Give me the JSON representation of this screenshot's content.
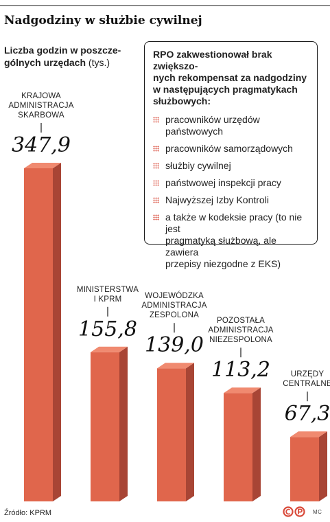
{
  "title": "Nadgodziny w służbie cywilnej",
  "subtitle": {
    "line1": "Liczba godzin w poszcze-",
    "line2": "gólnych urzędach",
    "unit": "(tys.)"
  },
  "box": {
    "heading_lines": [
      "RPO zakwestionował brak zwiększo-",
      "nych rekompensat za nadgodziny",
      "w następujących pragmatykach",
      "służbowych:"
    ],
    "items": [
      [
        "pracowników urzędów",
        "państwowych"
      ],
      [
        "pracowników samorządowych"
      ],
      [
        "służbiy cywilnej"
      ],
      [
        "państwowej inspekcji pracy"
      ],
      [
        "Najwyższej Izby Kontroli"
      ],
      [
        "a także w kodeksie pracy (to nie jest",
        "pragmatyką służbową, ale zawiera",
        "przepisy niezgodne z EKS)"
      ]
    ]
  },
  "chart_data": {
    "type": "bar",
    "categories": [
      "KRAJOWA ADMINISTRACJA SKARBOWA",
      "MINISTERSTWA I KPRM",
      "WOJEWÓDZKA ADMINISTRACJA ZESPOLONA",
      "POZOSTAŁA ADMINISTRACJA NIEZESPOLONA",
      "URZĘDY CENTRALNE"
    ],
    "category_lines": [
      [
        "KRAJOWA",
        "ADMINISTRACJA",
        "SKARBOWA"
      ],
      [
        "MINISTERSTWA",
        "I KPRM"
      ],
      [
        "WOJEWÓDZKA",
        "ADMINISTRACJA",
        "ZESPOLONA"
      ],
      [
        "POZOSTAŁA",
        "ADMINISTRACJA",
        "NIEZESPOLONA"
      ],
      [
        "URZĘDY",
        "CENTRALNE"
      ]
    ],
    "values": [
      347.9,
      155.8,
      139.0,
      113.2,
      67.3
    ],
    "value_labels": [
      "347,9",
      "155,8",
      "139,0",
      "113,2",
      "67,3"
    ],
    "unit": "tys.",
    "ylim": [
      0,
      347.9
    ],
    "grid": false,
    "colors": {
      "front": "#e0664c",
      "side": "#a84535",
      "top": "#f08a70"
    }
  },
  "source": "Źródło: KPRM",
  "credit": "MC"
}
